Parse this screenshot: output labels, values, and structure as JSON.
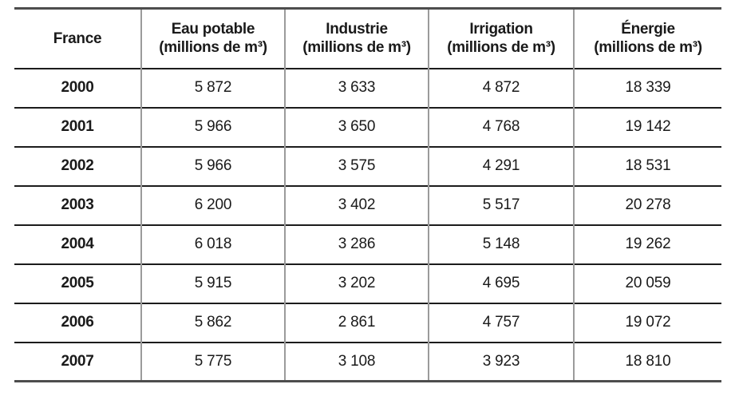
{
  "table": {
    "columns": [
      {
        "label": "France",
        "sublabel": ""
      },
      {
        "label": "Eau potable",
        "sublabel": "(millions de m³)"
      },
      {
        "label": "Industrie",
        "sublabel": "(millions de m³)"
      },
      {
        "label": "Irrigation",
        "sublabel": "(millions de m³)"
      },
      {
        "label": "Énergie",
        "sublabel": "(millions de m³)"
      }
    ],
    "rows": [
      {
        "year": "2000",
        "values": [
          "5 872",
          "3 633",
          "4 872",
          "18 339"
        ]
      },
      {
        "year": "2001",
        "values": [
          "5 966",
          "3 650",
          "4 768",
          "19 142"
        ]
      },
      {
        "year": "2002",
        "values": [
          "5 966",
          "3 575",
          "4 291",
          "18 531"
        ]
      },
      {
        "year": "2003",
        "values": [
          "6 200",
          "3 402",
          "5 517",
          "20 278"
        ]
      },
      {
        "year": "2004",
        "values": [
          "6 018",
          "3 286",
          "5 148",
          "19 262"
        ]
      },
      {
        "year": "2005",
        "values": [
          "5 915",
          "3 202",
          "4 695",
          "20 059"
        ]
      },
      {
        "year": "2006",
        "values": [
          "5 862",
          "2 861",
          "4 757",
          "19 072"
        ]
      },
      {
        "year": "2007",
        "values": [
          "5 775",
          "3 108",
          "3 923",
          "18 810"
        ]
      }
    ]
  },
  "chart_data": {
    "type": "table",
    "region_label": "France",
    "unit": "millions de m³",
    "categories": [
      2000,
      2001,
      2002,
      2003,
      2004,
      2005,
      2006,
      2007
    ],
    "series": [
      {
        "name": "Eau potable (millions de m³)",
        "values": [
          5872,
          5966,
          5966,
          6200,
          6018,
          5915,
          5862,
          5775
        ]
      },
      {
        "name": "Industrie (millions de m³)",
        "values": [
          3633,
          3650,
          3575,
          3402,
          3286,
          3202,
          2861,
          3108
        ]
      },
      {
        "name": "Irrigation (millions de m³)",
        "values": [
          4872,
          4768,
          4291,
          5517,
          5148,
          4695,
          4757,
          3923
        ]
      },
      {
        "name": "Énergie (millions de m³)",
        "values": [
          18339,
          19142,
          18531,
          20278,
          19262,
          20059,
          19072,
          18810
        ]
      }
    ],
    "colors": {
      "text": "#1a1a1a",
      "outer_border": "#4d4d4d",
      "row_line": "#1c1c1c",
      "column_line": "#9b9b9b",
      "background": "#ffffff"
    }
  }
}
